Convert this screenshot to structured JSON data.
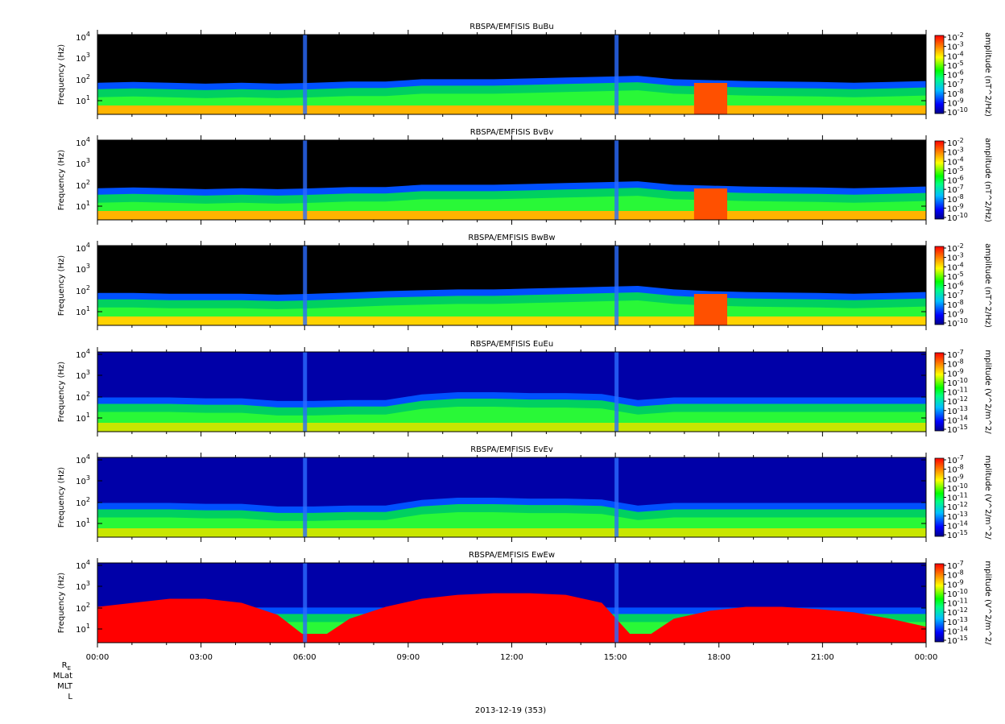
{
  "chart_data": [
    {
      "type": "heatmap",
      "title": "RBSPA/EMFISIS  BuBu",
      "ylabel": "Frequency (Hz)",
      "yscale": "log",
      "yticks": [
        "10",
        "10",
        "10",
        "10"
      ],
      "yticks_exp": [
        "1",
        "2",
        "3",
        "4"
      ],
      "colorbar_label": "amplitude (nT^2/Hz)",
      "colorbar_ticks": [
        "10",
        "10",
        "10",
        "10",
        "10",
        "10",
        "10",
        "10",
        "10"
      ],
      "colorbar_ticks_exp": [
        "-2",
        "-3",
        "-4",
        "-5",
        "-6",
        "-7",
        "-8",
        "-9",
        "-10"
      ],
      "colorbar_scale": "log",
      "colormap": "rainbow",
      "colors": {
        "low": "#00008b",
        "mid": "#00ff00",
        "high": "#ff0000",
        "nodata": "#000000"
      },
      "features": {
        "low_band_color": "#ffb400",
        "cutoff_frac": [
          0.72,
          0.74,
          0.72,
          0.7,
          0.72,
          0.7,
          0.72,
          0.75,
          0.75,
          0.8,
          0.8,
          0.8,
          0.82,
          0.84,
          0.86,
          0.88,
          0.8,
          0.78,
          0.76,
          0.75,
          0.74,
          0.72,
          0.74,
          0.76
        ],
        "red_burst": [
          0.72,
          0.76
        ]
      }
    },
    {
      "type": "heatmap",
      "title": "RBSPA/EMFISIS  BvBv",
      "ylabel": "Frequency (Hz)",
      "yscale": "log",
      "yticks": [
        "10",
        "10",
        "10",
        "10"
      ],
      "yticks_exp": [
        "1",
        "2",
        "3",
        "4"
      ],
      "colorbar_label": "amplitude (nT^2/Hz)",
      "colorbar_ticks": [
        "10",
        "10",
        "10",
        "10",
        "10",
        "10",
        "10",
        "10",
        "10"
      ],
      "colorbar_ticks_exp": [
        "-2",
        "-3",
        "-4",
        "-5",
        "-6",
        "-7",
        "-8",
        "-9",
        "-10"
      ],
      "colorbar_scale": "log",
      "colormap": "rainbow",
      "colors": {
        "low": "#00008b",
        "mid": "#00ff00",
        "high": "#ff0000",
        "nodata": "#000000"
      },
      "features": {
        "low_band_color": "#ffb400",
        "cutoff_frac": [
          0.72,
          0.74,
          0.72,
          0.7,
          0.72,
          0.7,
          0.72,
          0.75,
          0.75,
          0.8,
          0.8,
          0.8,
          0.82,
          0.84,
          0.86,
          0.88,
          0.8,
          0.78,
          0.76,
          0.75,
          0.74,
          0.72,
          0.74,
          0.76
        ],
        "red_burst": [
          0.72,
          0.76
        ]
      }
    },
    {
      "type": "heatmap",
      "title": "RBSPA/EMFISIS  BwBw",
      "ylabel": "Frequency (Hz)",
      "yscale": "log",
      "yticks": [
        "10",
        "10",
        "10",
        "10"
      ],
      "yticks_exp": [
        "1",
        "2",
        "3",
        "4"
      ],
      "colorbar_label": "amplitude (nT^2/Hz)",
      "colorbar_ticks": [
        "10",
        "10",
        "10",
        "10",
        "10",
        "10",
        "10",
        "10",
        "10"
      ],
      "colorbar_ticks_exp": [
        "-2",
        "-3",
        "-4",
        "-5",
        "-6",
        "-7",
        "-8",
        "-9",
        "-10"
      ],
      "colorbar_scale": "log",
      "colormap": "rainbow",
      "colors": {
        "low": "#00008b",
        "mid": "#00ff00",
        "high": "#ff0000",
        "nodata": "#000000"
      },
      "features": {
        "low_band_color": "#ffd200",
        "cutoff_frac": [
          0.74,
          0.74,
          0.72,
          0.72,
          0.72,
          0.7,
          0.72,
          0.75,
          0.78,
          0.8,
          0.82,
          0.82,
          0.84,
          0.86,
          0.88,
          0.9,
          0.82,
          0.78,
          0.76,
          0.75,
          0.74,
          0.72,
          0.74,
          0.76
        ],
        "red_burst": [
          0.72,
          0.76
        ]
      }
    },
    {
      "type": "heatmap",
      "title": "RBSPA/EMFISIS  EuEu",
      "ylabel": "Frequency (Hz)",
      "yscale": "log",
      "yticks": [
        "10",
        "10",
        "10",
        "10"
      ],
      "yticks_exp": [
        "1",
        "2",
        "3",
        "4"
      ],
      "colorbar_label": "mplitude (V^2/m^2/",
      "colorbar_ticks": [
        "10",
        "10",
        "10",
        "10",
        "10",
        "10",
        "10",
        "10",
        "10"
      ],
      "colorbar_ticks_exp": [
        "-7",
        "-8",
        "-9",
        "-10",
        "-11",
        "-12",
        "-13",
        "-14",
        "-15"
      ],
      "colorbar_scale": "log",
      "colormap": "rainbow",
      "colors": {
        "low": "#00008b",
        "mid": "#00ff00",
        "high": "#ff0000",
        "nodata": "#000000"
      },
      "features": {
        "low_band_color": "#c8e600",
        "cutoff_frac": [
          0.78,
          0.78,
          0.78,
          0.76,
          0.76,
          0.7,
          0.7,
          0.72,
          0.72,
          0.85,
          0.9,
          0.9,
          0.88,
          0.88,
          0.86,
          0.72,
          0.78,
          0.78,
          0.78,
          0.78,
          0.78,
          0.78,
          0.78,
          0.78
        ],
        "red_burst": null
      }
    },
    {
      "type": "heatmap",
      "title": "RBSPA/EMFISIS  EvEv",
      "ylabel": "Frequency (Hz)",
      "yscale": "log",
      "yticks": [
        "10",
        "10",
        "10",
        "10"
      ],
      "yticks_exp": [
        "1",
        "2",
        "3",
        "4"
      ],
      "colorbar_label": "mplitude (V^2/m^2/",
      "colorbar_ticks": [
        "10",
        "10",
        "10",
        "10",
        "10",
        "10",
        "10",
        "10",
        "10"
      ],
      "colorbar_ticks_exp": [
        "-7",
        "-8",
        "-9",
        "-10",
        "-11",
        "-12",
        "-13",
        "-14",
        "-15"
      ],
      "colorbar_scale": "log",
      "colormap": "rainbow",
      "colors": {
        "low": "#00008b",
        "mid": "#00ff00",
        "high": "#ff0000",
        "nodata": "#000000"
      },
      "features": {
        "low_band_color": "#c8e600",
        "cutoff_frac": [
          0.78,
          0.78,
          0.78,
          0.76,
          0.76,
          0.7,
          0.7,
          0.72,
          0.72,
          0.85,
          0.9,
          0.9,
          0.88,
          0.88,
          0.86,
          0.72,
          0.78,
          0.78,
          0.78,
          0.78,
          0.78,
          0.78,
          0.78,
          0.78
        ],
        "red_burst": null
      }
    },
    {
      "type": "heatmap",
      "title": "RBSPA/EMFISIS  EwEw",
      "ylabel": "Frequency (Hz)",
      "yscale": "log",
      "yticks": [
        "10",
        "10",
        "10",
        "10"
      ],
      "yticks_exp": [
        "1",
        "2",
        "3",
        "4"
      ],
      "colorbar_label": "mplitude (V^2/m^2/",
      "colorbar_ticks": [
        "10",
        "10",
        "10",
        "10",
        "10",
        "10",
        "10",
        "10",
        "10"
      ],
      "colorbar_ticks_exp": [
        "-7",
        "-8",
        "-9",
        "-10",
        "-11",
        "-12",
        "-13",
        "-14",
        "-15"
      ],
      "colorbar_scale": "log",
      "colormap": "rainbow",
      "colors": {
        "low": "#00008b",
        "mid": "#00ff00",
        "high": "#ff0000",
        "nodata": "#000000"
      },
      "features": {
        "low_band_color": "#ff0000",
        "red_fill_frac": [
          0.45,
          0.5,
          0.55,
          0.55,
          0.5,
          0.35,
          0.0,
          0.3,
          0.45,
          0.55,
          0.6,
          0.62,
          0.62,
          0.6,
          0.5,
          0.0,
          0.3,
          0.4,
          0.45,
          0.45,
          0.42,
          0.38,
          0.3,
          0.2
        ],
        "cutoff_frac": [
          0.8,
          0.8,
          0.8,
          0.8,
          0.8,
          0.8,
          0.8,
          0.8,
          0.8,
          0.8,
          0.8,
          0.8,
          0.8,
          0.8,
          0.8,
          0.8,
          0.8,
          0.8,
          0.8,
          0.8,
          0.8,
          0.8,
          0.8,
          0.8
        ],
        "red_burst": null
      }
    }
  ],
  "x_axis": {
    "ticks": [
      "00:00",
      "03:00",
      "06:00",
      "09:00",
      "12:00",
      "15:00",
      "18:00",
      "21:00",
      "00:00"
    ],
    "date_label": "2013-12-19 (353)"
  },
  "ephemeris_labels": {
    "re_main": "R",
    "re_sub": "E",
    "mlat": "MLat",
    "mlt": "MLT",
    "l": "L"
  }
}
